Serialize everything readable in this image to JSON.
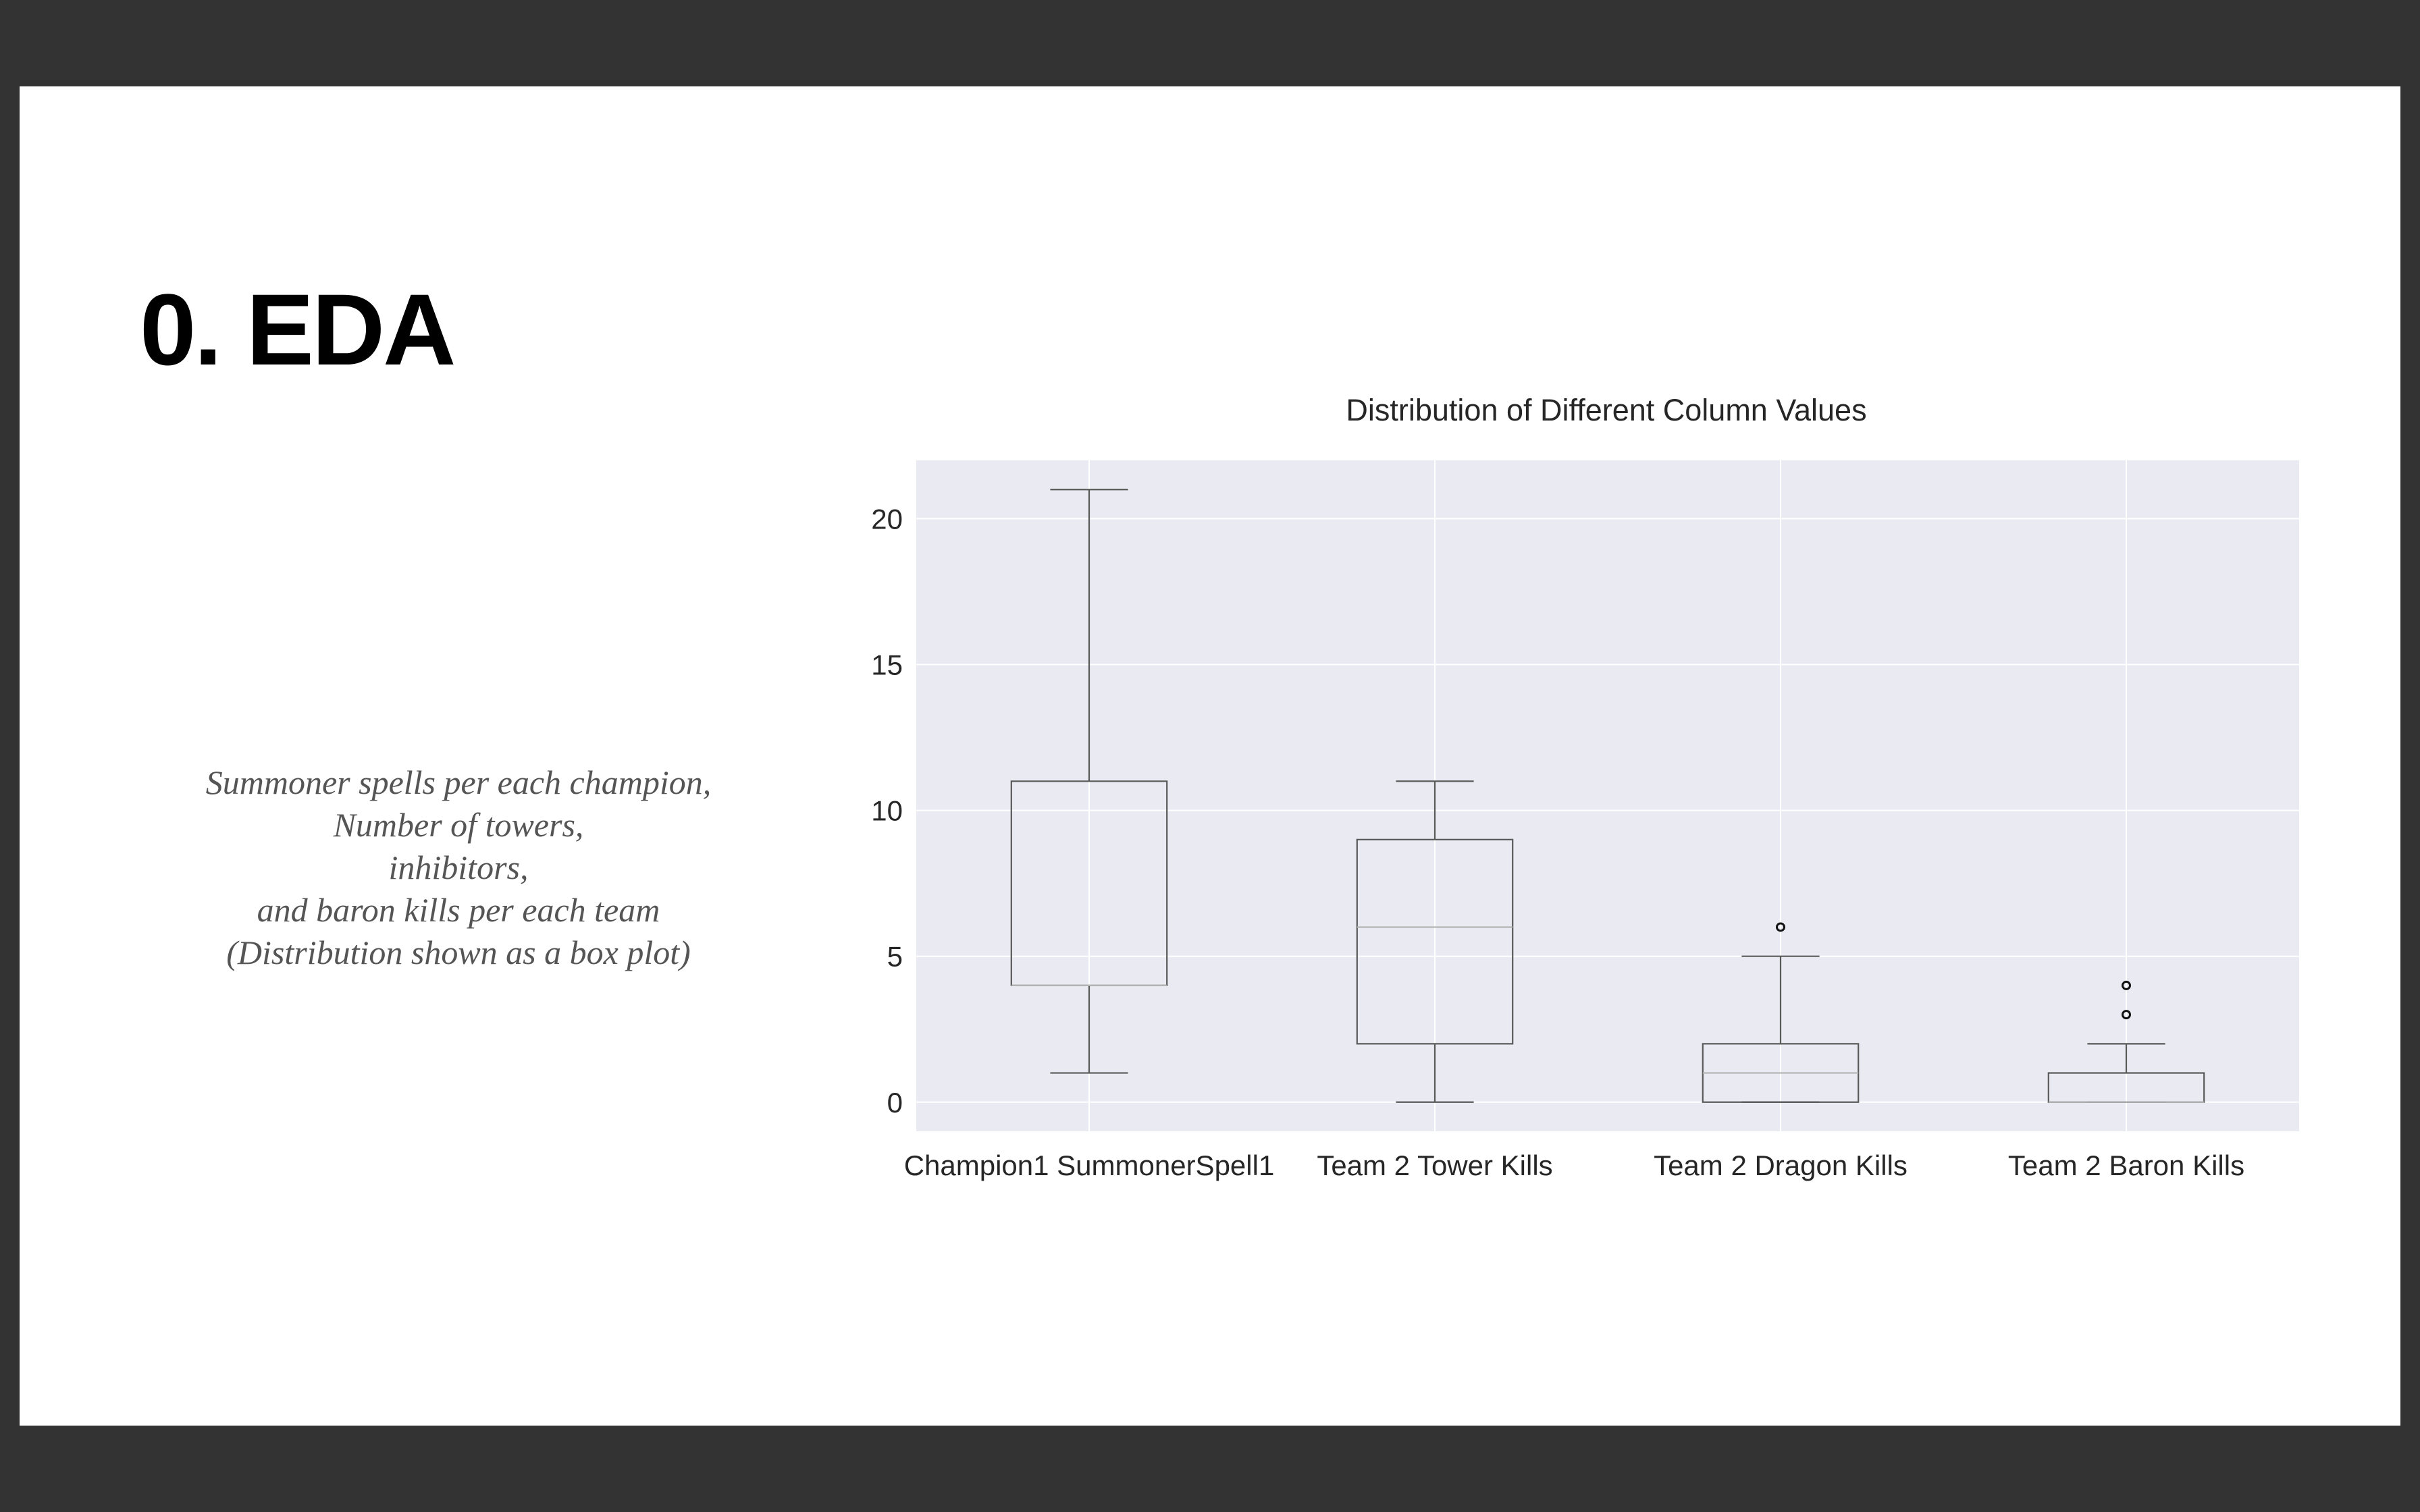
{
  "slide": {
    "title": "0. EDA",
    "caption_lines": [
      "Summoner spells per each champion,",
      "Number of towers,",
      "inhibitors,",
      "and baron kills per each team",
      "(Distribution shown as a box plot)"
    ]
  },
  "chart_data": {
    "type": "box",
    "title": "Distribution of Different Column Values",
    "xlabel": "",
    "ylabel": "",
    "ylim": [
      -1,
      22
    ],
    "yticks": [
      0,
      5,
      10,
      15,
      20
    ],
    "grid": true,
    "background_color": "#eaeaf2",
    "grid_color": "#ffffff",
    "box_color": "#595959",
    "median_color": "#b3b3b3",
    "categories": [
      "Champion1 SummonerSpell1",
      "Team 2 Tower Kills",
      "Team 2 Dragon Kills",
      "Team 2 Baron Kills"
    ],
    "boxes": [
      {
        "label": "Champion1 SummonerSpell1",
        "whisker_low": 1,
        "q1": 4,
        "median": 4,
        "q3": 11,
        "whisker_high": 21,
        "outliers": []
      },
      {
        "label": "Team 2 Tower Kills",
        "whisker_low": 0,
        "q1": 2,
        "median": 6,
        "q3": 9,
        "whisker_high": 11,
        "outliers": []
      },
      {
        "label": "Team 2 Dragon Kills",
        "whisker_low": 0,
        "q1": 0,
        "median": 1,
        "q3": 2,
        "whisker_high": 5,
        "outliers": [
          6
        ]
      },
      {
        "label": "Team 2 Baron Kills",
        "whisker_low": 0,
        "q1": 0,
        "median": 0,
        "q3": 1,
        "whisker_high": 2,
        "outliers": [
          3,
          4
        ]
      }
    ]
  }
}
